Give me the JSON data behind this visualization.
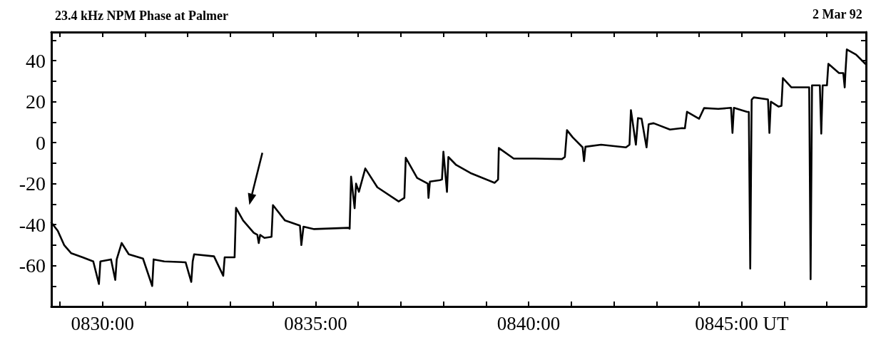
{
  "chart_data": {
    "type": "line",
    "title": "23.4 kHz NPM Phase at Palmer",
    "subtitle": "2 Mar 92",
    "xlim": [
      "--03-02T08:28:48",
      "--03-02T08:47:55"
    ],
    "ylim": [
      -80,
      54
    ],
    "xticks": [
      {
        "value": "--03-02T08:29",
        "label": null
      },
      {
        "value": "--03-02T08:30",
        "label": "0830:00"
      },
      {
        "value": "--03-02T08:31",
        "label": null
      },
      {
        "value": "--03-02T08:32",
        "label": null
      },
      {
        "value": "--03-02T08:33",
        "label": null
      },
      {
        "value": "--03-02T08:34",
        "label": null
      },
      {
        "value": "--03-02T08:35",
        "label": "0835:00"
      },
      {
        "value": "--03-02T08:36",
        "label": null
      },
      {
        "value": "--03-02T08:37",
        "label": null
      },
      {
        "value": "--03-02T08:38",
        "label": null
      },
      {
        "value": "--03-02T08:39",
        "label": null
      },
      {
        "value": "--03-02T08:40",
        "label": "0840:00"
      },
      {
        "value": "--03-02T08:41",
        "label": null
      },
      {
        "value": "--03-02T08:42",
        "label": null
      },
      {
        "value": "--03-02T08:43",
        "label": null
      },
      {
        "value": "--03-02T08:44",
        "label": null
      },
      {
        "value": "--03-02T08:45",
        "label": "0845:00 UT"
      },
      {
        "value": "--03-02T08:46",
        "label": null
      },
      {
        "value": "--03-02T08:47",
        "label": null
      }
    ],
    "yticks": [
      {
        "value": -70,
        "label": null
      },
      -60,
      {
        "value": -50,
        "label": null
      },
      -40,
      {
        "value": -30,
        "label": null
      },
      -20,
      {
        "value": -10,
        "label": null
      },
      0,
      {
        "value": 10,
        "label": null
      },
      20,
      {
        "value": 30,
        "label": null
      },
      40,
      {
        "value": 50,
        "label": null
      }
    ],
    "grid": false,
    "marker": "none",
    "line_style": "solid",
    "series": [
      {
        "color": "#000000",
        "x": [
          "--03-02T08:28:48",
          "--03-02T08:28:57",
          "--03-02T08:29:06",
          "--03-02T08:29:16",
          "--03-02T08:29:32",
          "--03-02T08:29:47",
          "--03-02T08:29:55",
          "--03-02T08:29:57",
          "--03-02T08:30:12",
          "--03-02T08:30:18",
          "--03-02T08:30:20",
          "--03-02T08:30:27",
          "--03-02T08:30:37",
          "--03-02T08:30:57",
          "--03-02T08:31:10",
          "--03-02T08:31:12",
          "--03-02T08:31:27",
          "--03-02T08:31:57",
          "--03-02T08:32:05",
          "--03-02T08:32:07",
          "--03-02T08:32:09",
          "--03-02T08:32:37",
          "--03-02T08:32:50",
          "--03-02T08:32:52",
          "--03-02T08:33:05",
          "--03-02T08:33:06",
          "--03-02T08:33:08",
          "--03-02T08:33:18",
          "--03-02T08:33:33",
          "--03-02T08:33:38",
          "--03-02T08:33:40",
          "--03-02T08:33:42",
          "--03-02T08:33:48",
          "--03-02T08:33:58",
          "--03-02T08:34:00",
          "--03-02T08:34:17",
          "--03-02T08:34:38",
          "--03-02T08:34:40",
          "--03-02T08:34:43",
          "--03-02T08:34:58",
          "--03-02T08:35:46",
          "--03-02T08:35:48",
          "--03-02T08:35:50",
          "--03-02T08:35:55",
          "--03-02T08:35:57",
          "--03-02T08:36:01",
          "--03-02T08:36:10",
          "--03-02T08:36:27",
          "--03-02T08:36:57",
          "--03-02T08:37:05",
          "--03-02T08:37:07",
          "--03-02T08:37:23",
          "--03-02T08:37:38",
          "--03-02T08:37:39",
          "--03-02T08:37:41",
          "--03-02T08:37:55",
          "--03-02T08:37:58",
          "--03-02T08:38:00",
          "--03-02T08:38:05",
          "--03-02T08:38:07",
          "--03-02T08:38:18",
          "--03-02T08:38:38",
          "--03-02T08:39:12",
          "--03-02T08:39:17",
          "--03-02T08:39:18",
          "--03-02T08:39:39",
          "--03-02T08:40:09",
          "--03-02T08:40:47",
          "--03-02T08:40:51",
          "--03-02T08:40:54",
          "--03-02T08:41:02",
          "--03-02T08:41:16",
          "--03-02T08:41:18",
          "--03-02T08:41:20",
          "--03-02T08:41:42",
          "--03-02T08:42:17",
          "--03-02T08:42:22",
          "--03-02T08:42:24",
          "--03-02T08:42:31",
          "--03-02T08:42:34",
          "--03-02T08:42:39",
          "--03-02T08:42:46",
          "--03-02T08:42:49",
          "--03-02T08:42:56",
          "--03-02T08:43:19",
          "--03-02T08:43:36",
          "--03-02T08:43:40",
          "--03-02T08:43:43",
          "--03-02T08:44:00",
          "--03-02T08:44:07",
          "--03-02T08:44:27",
          "--03-02T08:44:45",
          "--03-02T08:44:47",
          "--03-02T08:44:49",
          "--03-02T08:45:07",
          "--03-02T08:45:10",
          "--03-02T08:45:12",
          "--03-02T08:45:14",
          "--03-02T08:45:17",
          "--03-02T08:45:37",
          "--03-02T08:45:39",
          "--03-02T08:45:41",
          "--03-02T08:45:52",
          "--03-02T08:45:56",
          "--03-02T08:45:58",
          "--03-02T08:46:10",
          "--03-02T08:46:33",
          "--03-02T08:46:35",
          "--03-02T08:46:37",
          "--03-02T08:46:39",
          "--03-02T08:46:50",
          "--03-02T08:46:52",
          "--03-02T08:46:54",
          "--03-02T08:47:00",
          "--03-02T08:47:02",
          "--03-02T08:47:17",
          "--03-02T08:47:23",
          "--03-02T08:47:25",
          "--03-02T08:47:26",
          "--03-02T08:47:28",
          "--03-02T08:47:41",
          "--03-02T08:47:54"
        ],
        "values": [
          -39,
          -43,
          -50,
          -54,
          -56,
          -58,
          -69,
          -58,
          -57,
          -67,
          -57,
          -49,
          -54.5,
          -56.6,
          -70,
          -57,
          -58,
          -58.4,
          -68,
          -58,
          -54.5,
          -55.5,
          -65,
          -56,
          -56,
          -56,
          -31.8,
          -38,
          -44,
          -45,
          -49,
          -45,
          -46.5,
          -46,
          -30.5,
          -38,
          -40.5,
          -50,
          -41,
          -42.2,
          -41.6,
          -42,
          -16.6,
          -32,
          -20,
          -24,
          -12.6,
          -21.8,
          -28.7,
          -27,
          -7.4,
          -17.2,
          -20,
          -27,
          -19,
          -18.3,
          -18,
          -4.4,
          -24,
          -7,
          -10.9,
          -14.8,
          -19.6,
          -18,
          -2.6,
          -7.8,
          -7.8,
          -8,
          -7,
          6.1,
          2.6,
          -2.3,
          -9,
          -2,
          -1,
          -2.3,
          -1,
          15.9,
          -1,
          12,
          11.7,
          -2.3,
          9,
          9.5,
          6.4,
          7.1,
          7,
          15.1,
          11.7,
          16.9,
          16.5,
          17,
          4.8,
          17,
          15.1,
          15,
          -61.5,
          21,
          22.1,
          21.1,
          4.8,
          20,
          17.6,
          18,
          31.5,
          27,
          27,
          27,
          -66.7,
          28,
          28,
          4.4,
          28,
          28,
          38.5,
          34,
          34,
          27,
          34,
          45.5,
          43,
          38.5
        ]
      }
    ]
  }
}
